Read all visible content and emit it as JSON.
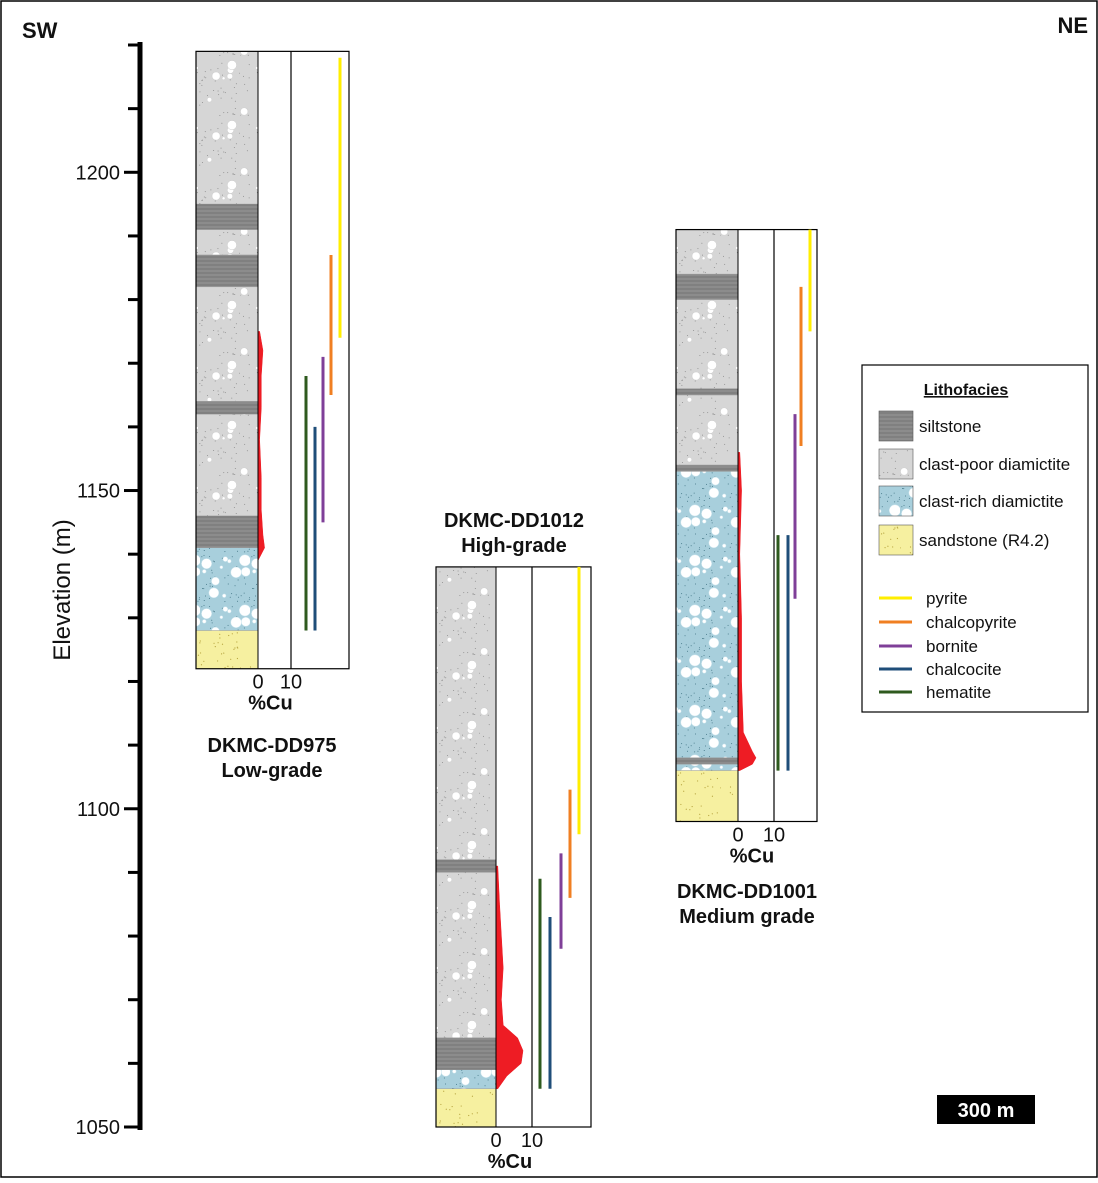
{
  "chart_data": {
    "type": "strat-columns",
    "left_label": "SW",
    "right_label": "NE",
    "y_label": "Elevation (m)",
    "ylim": [
      1050,
      1220
    ],
    "yticks": [
      1050,
      1100,
      1150,
      1200
    ],
    "minor_yticks": [
      1060,
      1070,
      1080,
      1090,
      1110,
      1120,
      1130,
      1140,
      1160,
      1170,
      1180,
      1190,
      1210,
      1220
    ],
    "cu_label": "%Cu",
    "cu_ticks": [
      0,
      10
    ],
    "cu_color": "#ee1c24",
    "legend_title": "Lithofacies",
    "facies": [
      {
        "name": "siltstone",
        "color": "#8c8c8c"
      },
      {
        "name": "clast-poor diamictite",
        "color": "#d6d6d6"
      },
      {
        "name": "clast-rich diamictite",
        "color": "#a8cfdc"
      },
      {
        "name": "sandstone (R4.2)",
        "color": "#f6f0a0"
      }
    ],
    "minerals": [
      {
        "name": "pyrite",
        "color": "#ffee00"
      },
      {
        "name": "chalcopyrite",
        "color": "#f07f22"
      },
      {
        "name": "bornite",
        "color": "#7f3f98"
      },
      {
        "name": "chalcocite",
        "color": "#1f4e79"
      },
      {
        "name": "hematite",
        "color": "#2e5a1e"
      }
    ],
    "scale_bar": "300 m",
    "holes": [
      {
        "name": "DKMC-DD975",
        "grade": "Low-grade",
        "intervals": [
          {
            "facies": "clast-poor diamictite",
            "top": 1219,
            "bottom": 1195
          },
          {
            "facies": "siltstone",
            "top": 1195,
            "bottom": 1191
          },
          {
            "facies": "clast-poor diamictite",
            "top": 1191,
            "bottom": 1187
          },
          {
            "facies": "siltstone",
            "top": 1187,
            "bottom": 1182
          },
          {
            "facies": "clast-poor diamictite",
            "top": 1182,
            "bottom": 1164
          },
          {
            "facies": "siltstone",
            "top": 1164,
            "bottom": 1162
          },
          {
            "facies": "clast-poor diamictite",
            "top": 1162,
            "bottom": 1146
          },
          {
            "facies": "siltstone",
            "top": 1146,
            "bottom": 1141
          },
          {
            "facies": "clast-rich diamictite",
            "top": 1141,
            "bottom": 1128
          },
          {
            "facies": "sandstone (R4.2)",
            "top": 1128,
            "bottom": 1122
          }
        ],
        "cu": {
          "elevation": [
            1175,
            1172,
            1168,
            1163,
            1158,
            1152,
            1147,
            1143,
            1141,
            1139
          ],
          "values": [
            0.5,
            1.5,
            1,
            1,
            0.5,
            1,
            1,
            1.5,
            2,
            0
          ]
        },
        "mineral_ranges": [
          [
            1218,
            1174
          ],
          [
            1187,
            1165
          ],
          [
            1171,
            1145
          ],
          [
            1160,
            1128
          ],
          [
            1168,
            1128
          ]
        ]
      },
      {
        "name": "DKMC-DD1012",
        "grade": "High-grade",
        "intervals": [
          {
            "facies": "clast-poor diamictite",
            "top": 1138,
            "bottom": 1092
          },
          {
            "facies": "siltstone",
            "top": 1092,
            "bottom": 1090
          },
          {
            "facies": "clast-poor diamictite",
            "top": 1090,
            "bottom": 1064
          },
          {
            "facies": "siltstone",
            "top": 1064,
            "bottom": 1059
          },
          {
            "facies": "clast-rich diamictite",
            "top": 1059,
            "bottom": 1056
          },
          {
            "facies": "sandstone (R4.2)",
            "top": 1056,
            "bottom": 1050
          }
        ],
        "cu": {
          "elevation": [
            1091,
            1085,
            1080,
            1075,
            1070,
            1066,
            1064,
            1062,
            1060,
            1058,
            1056
          ],
          "values": [
            0.5,
            1,
            1.5,
            2,
            1.5,
            2,
            6,
            7.5,
            7,
            3,
            0.5
          ]
        },
        "mineral_ranges": [
          [
            1138,
            1096
          ],
          [
            1103,
            1086
          ],
          [
            1093,
            1078
          ],
          [
            1083,
            1056
          ],
          [
            1089,
            1056
          ]
        ]
      },
      {
        "name": "DKMC-DD1001",
        "grade": "Medium grade",
        "intervals": [
          {
            "facies": "clast-poor diamictite",
            "top": 1191,
            "bottom": 1184
          },
          {
            "facies": "siltstone",
            "top": 1184,
            "bottom": 1180
          },
          {
            "facies": "clast-poor diamictite",
            "top": 1180,
            "bottom": 1166
          },
          {
            "facies": "siltstone",
            "top": 1166,
            "bottom": 1165
          },
          {
            "facies": "clast-poor diamictite",
            "top": 1165,
            "bottom": 1154
          },
          {
            "facies": "siltstone",
            "top": 1154,
            "bottom": 1153
          },
          {
            "facies": "clast-rich diamictite",
            "top": 1153,
            "bottom": 1108
          },
          {
            "facies": "siltstone",
            "top": 1108,
            "bottom": 1107
          },
          {
            "facies": "clast-rich diamictite",
            "top": 1107,
            "bottom": 1106
          },
          {
            "facies": "sandstone (R4.2)",
            "top": 1106,
            "bottom": 1098
          }
        ],
        "cu": {
          "elevation": [
            1156,
            1150,
            1140,
            1130,
            1120,
            1112,
            1109,
            1108,
            1107,
            1106
          ],
          "values": [
            0.5,
            1,
            0.5,
            1,
            1,
            1.5,
            4,
            5,
            4,
            0.5
          ]
        },
        "mineral_ranges": [
          [
            1191,
            1175
          ],
          [
            1182,
            1157
          ],
          [
            1162,
            1133
          ],
          [
            1143,
            1106
          ],
          [
            1143,
            1106
          ]
        ]
      }
    ]
  }
}
